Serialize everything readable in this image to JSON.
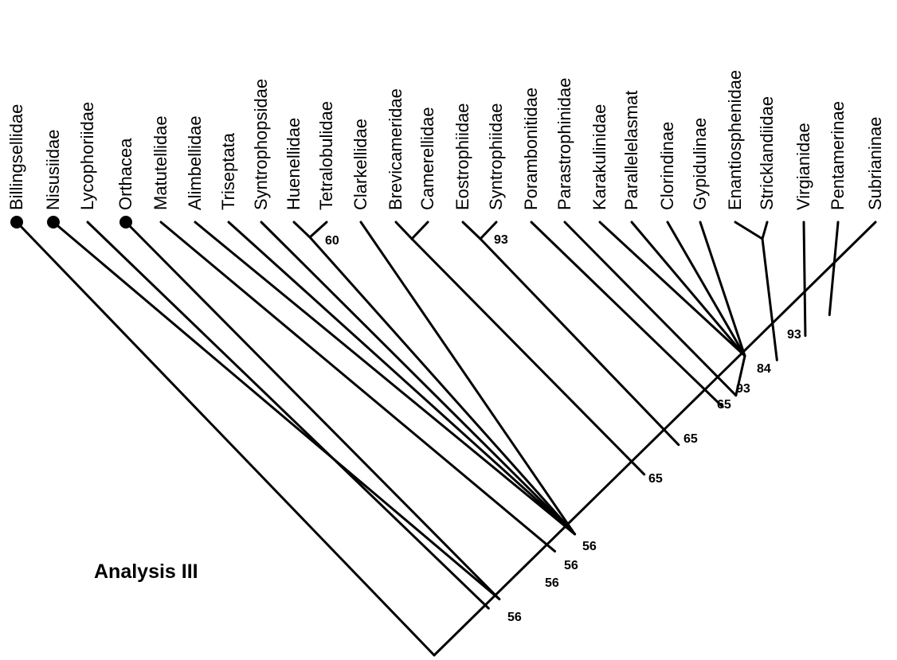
{
  "title": "Analysis III",
  "taxa": [
    {
      "name": "Billingsellidae",
      "marked": true
    },
    {
      "name": "Nisusiidae",
      "marked": true
    },
    {
      "name": "Lycophoriidae",
      "marked": false
    },
    {
      "name": "Orthacea",
      "marked": true
    },
    {
      "name": "Matutellidae",
      "marked": false
    },
    {
      "name": "Alimbellidae",
      "marked": false
    },
    {
      "name": "Triseptata",
      "marked": false
    },
    {
      "name": "Syntrophopsidae",
      "marked": false
    },
    {
      "name": "Huenellidae",
      "marked": false
    },
    {
      "name": "Tetralobulidae",
      "marked": false
    },
    {
      "name": "Clarkellidae",
      "marked": false
    },
    {
      "name": "Brevicameridae",
      "marked": false
    },
    {
      "name": "Camerellidae",
      "marked": false
    },
    {
      "name": "Eostrophiidae",
      "marked": false
    },
    {
      "name": "Syntrophiidae",
      "marked": false
    },
    {
      "name": "Porambonitidae",
      "marked": false
    },
    {
      "name": "Parastrophinidae",
      "marked": false
    },
    {
      "name": "Karakulinidae",
      "marked": false
    },
    {
      "name": "Parallelelasmat",
      "marked": false
    },
    {
      "name": "Clorindinae",
      "marked": false
    },
    {
      "name": "Gypidulinae",
      "marked": false
    },
    {
      "name": "Enantiosphenidae",
      "marked": false
    },
    {
      "name": "Stricklandiidae",
      "marked": false
    },
    {
      "name": "Virgianidae",
      "marked": false
    },
    {
      "name": "Pentamerinae",
      "marked": false
    },
    {
      "name": "Subrianinae",
      "marked": false
    }
  ],
  "support_values": [
    "60",
    "93",
    "93",
    "84",
    "93",
    "65",
    "65",
    "65",
    "56",
    "56",
    "56",
    "56"
  ]
}
